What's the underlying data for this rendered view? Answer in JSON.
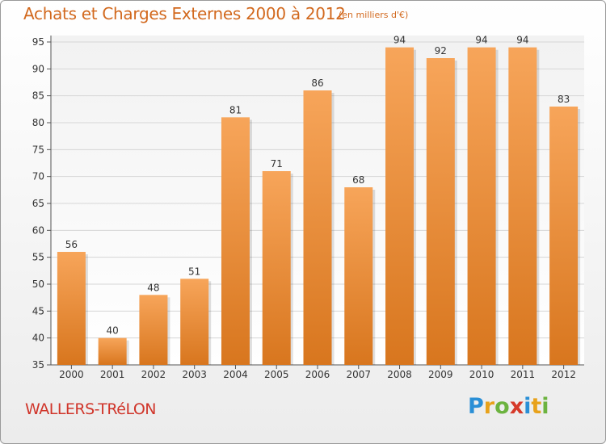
{
  "header": {
    "title": "Achats et Charges Externes 2000 à 2012",
    "subtitle": "(en milliers d'€)"
  },
  "footer": {
    "commune": "WALLERS-TRéLON",
    "logo_letters": [
      "P",
      "r",
      "o",
      "x",
      "i",
      "t",
      "i"
    ],
    "logo_colors": [
      "#2a8fd6",
      "#e8a21b",
      "#6cb33f",
      "#d63a2a",
      "#2a8fd6",
      "#e8a21b",
      "#6cb33f"
    ]
  },
  "colors": {
    "bar_light": "#f7a55a",
    "bar_dark": "#d8761e",
    "text": "#333333",
    "grid": "#d6d6d6"
  },
  "chart_data": {
    "type": "bar",
    "title": "Achats et Charges Externes 2000 à 2012",
    "subtitle": "(en milliers d'€)",
    "categories": [
      "2000",
      "2001",
      "2002",
      "2003",
      "2004",
      "2005",
      "2006",
      "2007",
      "2008",
      "2009",
      "2010",
      "2011",
      "2012"
    ],
    "values": [
      56,
      40,
      48,
      51,
      81,
      71,
      86,
      68,
      94,
      92,
      94,
      94,
      83
    ],
    "ylim": [
      35,
      95
    ],
    "yticks": [
      35,
      40,
      45,
      50,
      55,
      60,
      65,
      70,
      75,
      80,
      85,
      90,
      95
    ],
    "grid": true,
    "data_labels": true
  }
}
